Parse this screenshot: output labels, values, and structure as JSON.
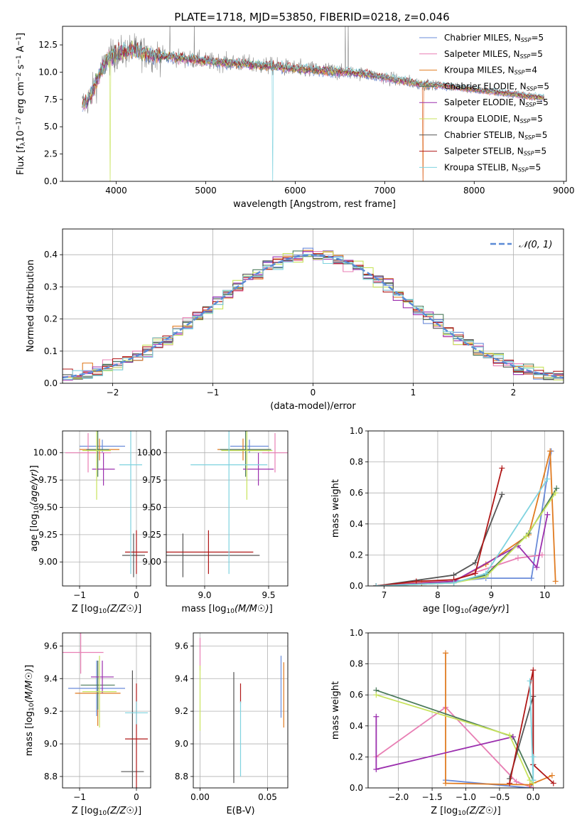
{
  "figure_title": "PLATE=1718, MJD=53850, FIBERID=0218, z=0.046",
  "colors": {
    "chabrier_miles": "#6a8bd9",
    "salpeter_miles": "#e87fb4",
    "kroupa_miles": "#e07b21",
    "chabrier_elodie": "#4b7a5b",
    "salpeter_elodie": "#9b2fae",
    "kroupa_elodie": "#c8e35c",
    "chabrier_stelib": "#555555",
    "salpeter_stelib": "#b01818",
    "kroupa_stelib": "#7fd3df",
    "data": "#888888",
    "gaussian": "#5b8ad6"
  },
  "legend": [
    {
      "base": "Chabrier MILES, N",
      "sub": "SSP",
      "tail": "=5",
      "color_key": "chabrier_miles"
    },
    {
      "base": "Salpeter MILES, N",
      "sub": "SSP",
      "tail": "=5",
      "color_key": "salpeter_miles"
    },
    {
      "base": "Kroupa MILES, N",
      "sub": "SSP",
      "tail": "=4",
      "color_key": "kroupa_miles"
    },
    {
      "base": "Chabrier ELODIE, N",
      "sub": "SSP",
      "tail": "=5",
      "color_key": "chabrier_elodie"
    },
    {
      "base": "Salpeter ELODIE, N",
      "sub": "SSP",
      "tail": "=5",
      "color_key": "salpeter_elodie"
    },
    {
      "base": "Kroupa ELODIE, N",
      "sub": "SSP",
      "tail": "=5",
      "color_key": "kroupa_elodie"
    },
    {
      "base": "Chabrier STELIB, N",
      "sub": "SSP",
      "tail": "=5",
      "color_key": "chabrier_stelib"
    },
    {
      "base": "Salpeter STELIB, N",
      "sub": "SSP",
      "tail": "=5",
      "color_key": "salpeter_stelib"
    },
    {
      "base": "Kroupa STELIB, N",
      "sub": "SSP",
      "tail": "=5",
      "color_key": "kroupa_stelib"
    }
  ],
  "chart_data": [
    {
      "id": "spectrum",
      "type": "line",
      "xlabel": "wavelength [Angstrom, rest frame]",
      "ylabel": "Flux [fλ10⁻¹⁷ erg cm⁻² s⁻¹ A⁻¹]",
      "xlim": [
        3400,
        9030
      ],
      "ylim": [
        0,
        14.2
      ],
      "xticks": [
        4000,
        5000,
        6000,
        7000,
        8000,
        9000
      ],
      "yticks": [
        0.0,
        2.5,
        5.0,
        7.5,
        10.0,
        12.5
      ],
      "continuum": {
        "x": [
          3620,
          3700,
          3800,
          3900,
          4000,
          4100,
          4200,
          4300,
          4400,
          4600,
          4800,
          5000,
          5200,
          5400,
          5600,
          5800,
          6000,
          6200,
          6400,
          6600,
          6800,
          7000,
          7200,
          7400,
          7600,
          7800,
          8000,
          8200,
          8400,
          8600,
          8800
        ],
        "y": [
          7.0,
          7.6,
          9.5,
          11.2,
          11.6,
          11.9,
          12.0,
          11.8,
          11.6,
          11.4,
          11.2,
          11.0,
          10.9,
          10.8,
          10.6,
          10.5,
          10.3,
          10.2,
          10.1,
          10.0,
          9.8,
          9.5,
          9.2,
          8.9,
          8.8,
          8.6,
          8.4,
          8.2,
          8.0,
          7.8,
          7.6
        ]
      },
      "legend_position": "upper right"
    },
    {
      "id": "residuals",
      "type": "histogram",
      "xlabel": "(data-model)/error",
      "ylabel": "Normed distribution",
      "xlim": [
        -2.5,
        2.5
      ],
      "ylim": [
        0,
        0.48
      ],
      "xticks": [
        -2,
        -1,
        0,
        1,
        2
      ],
      "yticks": [
        0.0,
        0.1,
        0.2,
        0.3,
        0.4
      ],
      "grid": true,
      "gaussian_label": "𝒩(0, 1)",
      "legend_position": "upper right"
    },
    {
      "id": "age_vs_Z",
      "type": "errorbar",
      "xlabel": "Z [log10(Z/Z☉)]",
      "ylabel": "age  [log10(age/yr)]",
      "xlim": [
        -1.3,
        0.25
      ],
      "ylim": [
        8.78,
        10.2
      ],
      "xticks": [
        -1,
        0
      ],
      "yticks": [
        9.0,
        9.25,
        9.5,
        9.75,
        10.0
      ],
      "grid": true,
      "points": [
        {
          "model": "chabrier_miles",
          "x": -0.6,
          "xerr": 0.4,
          "y": 10.06,
          "yerr": 0.06
        },
        {
          "model": "salpeter_miles",
          "x": -0.85,
          "xerr": 0.4,
          "y": 10.0,
          "yerr": 0.18
        },
        {
          "model": "kroupa_miles",
          "x": -0.65,
          "xerr": 0.35,
          "y": 10.03,
          "yerr": 0.1
        },
        {
          "model": "chabrier_elodie",
          "x": -0.68,
          "xerr": 0.2,
          "y": 10.03,
          "yerr": 0.25
        },
        {
          "model": "salpeter_elodie",
          "x": -0.58,
          "xerr": 0.2,
          "y": 9.85,
          "yerr": 0.15
        },
        {
          "model": "kroupa_elodie",
          "x": -0.7,
          "xerr": 0.25,
          "y": 10.02,
          "yerr": 0.45
        },
        {
          "model": "chabrier_stelib",
          "x": -0.05,
          "xerr": 0.2,
          "y": 9.06,
          "yerr": 0.2
        },
        {
          "model": "salpeter_stelib",
          "x": 0.0,
          "xerr": 0.2,
          "y": 9.09,
          "yerr": 0.2
        },
        {
          "model": "kroupa_stelib",
          "x": -0.1,
          "xerr": 0.2,
          "y": 9.89,
          "yerr": 1.0
        }
      ]
    },
    {
      "id": "age_vs_mass",
      "type": "errorbar",
      "xlabel": "mass [log10(M/M☉)]",
      "ylabel": "",
      "xlim": [
        8.7,
        9.65
      ],
      "ylim": [
        8.78,
        10.2
      ],
      "xticks": [
        9.0,
        9.5
      ],
      "yticks": [
        9.0,
        9.25,
        9.5,
        9.75,
        10.0
      ],
      "grid": true,
      "points": [
        {
          "model": "chabrier_miles",
          "x": 9.35,
          "xerr": 0.15,
          "y": 10.06,
          "yerr": 0.06
        },
        {
          "model": "salpeter_miles",
          "x": 9.55,
          "xerr": 0.1,
          "y": 10.0,
          "yerr": 0.18
        },
        {
          "model": "kroupa_miles",
          "x": 9.3,
          "xerr": 0.2,
          "y": 10.03,
          "yerr": 0.1
        },
        {
          "model": "chabrier_elodie",
          "x": 9.32,
          "xerr": 0.2,
          "y": 10.03,
          "yerr": 0.25
        },
        {
          "model": "salpeter_elodie",
          "x": 9.42,
          "xerr": 0.12,
          "y": 9.85,
          "yerr": 0.15
        },
        {
          "model": "kroupa_elodie",
          "x": 9.33,
          "xerr": 0.2,
          "y": 10.02,
          "yerr": 0.45
        },
        {
          "model": "chabrier_stelib",
          "x": 8.83,
          "xerr": 0.6,
          "y": 9.06,
          "yerr": 0.2
        },
        {
          "model": "salpeter_stelib",
          "x": 9.03,
          "xerr": 0.35,
          "y": 9.09,
          "yerr": 0.2
        },
        {
          "model": "kroupa_stelib",
          "x": 9.19,
          "xerr": 0.3,
          "y": 9.89,
          "yerr": 1.0
        }
      ]
    },
    {
      "id": "weight_vs_age",
      "type": "line",
      "xlabel": "age  [log10(age/yr)]",
      "ylabel": "mass weight",
      "xlim": [
        6.7,
        10.35
      ],
      "ylim": [
        0,
        1.0
      ],
      "xticks": [
        7,
        8,
        9,
        10
      ],
      "yticks": [
        0.0,
        0.2,
        0.4,
        0.6,
        0.8,
        1.0
      ],
      "grid": true,
      "series": [
        {
          "model": "chabrier_miles",
          "x": [
            6.85,
            8.3,
            8.9,
            9.75,
            10.12
          ],
          "y": [
            0.0,
            0.03,
            0.05,
            0.05,
            0.87
          ]
        },
        {
          "model": "salpeter_miles",
          "x": [
            6.85,
            8.3,
            9.5,
            9.95
          ],
          "y": [
            0.0,
            0.04,
            0.18,
            0.2
          ]
        },
        {
          "model": "kroupa_miles",
          "x": [
            6.85,
            7.7,
            8.3,
            8.9,
            9.7,
            10.1,
            10.2
          ],
          "y": [
            0.0,
            0.02,
            0.03,
            0.14,
            0.33,
            0.87,
            0.03
          ]
        },
        {
          "model": "chabrier_elodie",
          "x": [
            6.85,
            8.3,
            8.9,
            9.7,
            10.22
          ],
          "y": [
            0.0,
            0.02,
            0.07,
            0.34,
            0.63
          ]
        },
        {
          "model": "salpeter_elodie",
          "x": [
            6.85,
            8.3,
            9.5,
            9.85,
            10.05
          ],
          "y": [
            0.0,
            0.03,
            0.26,
            0.12,
            0.46
          ]
        },
        {
          "model": "kroupa_elodie",
          "x": [
            6.85,
            8.3,
            8.9,
            9.65,
            10.2
          ],
          "y": [
            0.0,
            0.02,
            0.06,
            0.32,
            0.6
          ]
        },
        {
          "model": "chabrier_stelib",
          "x": [
            6.85,
            8.3,
            8.7,
            9.2
          ],
          "y": [
            0.0,
            0.07,
            0.15,
            0.59
          ]
        },
        {
          "model": "salpeter_stelib",
          "x": [
            6.85,
            7.6,
            8.3,
            8.7,
            9.2
          ],
          "y": [
            0.0,
            0.03,
            0.04,
            0.08,
            0.76
          ]
        },
        {
          "model": "kroupa_stelib",
          "x": [
            6.85,
            8.3,
            8.9,
            10.05
          ],
          "y": [
            0.0,
            0.02,
            0.08,
            0.69
          ]
        }
      ]
    },
    {
      "id": "mass_vs_Z",
      "type": "errorbar",
      "xlabel": "Z [log10(Z/Z☉)]",
      "ylabel": "mass [log10(M/M☉)]",
      "xlim": [
        -1.3,
        0.25
      ],
      "ylim": [
        8.73,
        9.68
      ],
      "xticks": [
        -1,
        0
      ],
      "yticks": [
        8.8,
        9.0,
        9.2,
        9.4,
        9.6
      ],
      "grid": true,
      "points": [
        {
          "model": "chabrier_miles",
          "x": -0.7,
          "xerr": 0.5,
          "y": 9.34,
          "yerr": 0.17
        },
        {
          "model": "salpeter_miles",
          "x": -0.98,
          "xerr": 0.4,
          "y": 9.56,
          "yerr": 0.13
        },
        {
          "model": "kroupa_miles",
          "x": -0.68,
          "xerr": 0.4,
          "y": 9.31,
          "yerr": 0.2
        },
        {
          "model": "chabrier_elodie",
          "x": -0.68,
          "xerr": 0.3,
          "y": 9.36,
          "yerr": 0.15
        },
        {
          "model": "salpeter_elodie",
          "x": -0.6,
          "xerr": 0.2,
          "y": 9.41,
          "yerr": 0.1
        },
        {
          "model": "kroupa_elodie",
          "x": -0.65,
          "xerr": 0.3,
          "y": 9.32,
          "yerr": 0.22
        },
        {
          "model": "chabrier_stelib",
          "x": -0.07,
          "xerr": 0.2,
          "y": 8.83,
          "yerr": 0.62
        },
        {
          "model": "salpeter_stelib",
          "x": 0.0,
          "xerr": 0.2,
          "y": 9.03,
          "yerr": 0.34
        },
        {
          "model": "kroupa_stelib",
          "x": 0.0,
          "xerr": 0.2,
          "y": 9.19,
          "yerr": 0.07
        }
      ]
    },
    {
      "id": "mass_vs_ebv",
      "type": "errorbar",
      "xlabel": "E(B-V)",
      "ylabel": "",
      "xlim": [
        -0.005,
        0.065
      ],
      "ylim": [
        8.73,
        9.68
      ],
      "xticks": [
        0.0,
        0.05
      ],
      "yticks": [
        8.8,
        9.0,
        9.2,
        9.4,
        9.6
      ],
      "grid": true,
      "points": [
        {
          "model": "salpeter_miles",
          "x": 0.0,
          "y": 9.55,
          "yerr": 0.1
        },
        {
          "model": "kroupa_elodie",
          "x": 0.0,
          "y": 9.28,
          "yerr": 0.2
        },
        {
          "model": "chabrier_stelib",
          "x": 0.025,
          "y": 9.1,
          "yerr": 0.34
        },
        {
          "model": "salpeter_stelib",
          "x": 0.03,
          "y": 9.31,
          "yerr": 0.06
        },
        {
          "model": "kroupa_stelib",
          "x": 0.03,
          "y": 9.03,
          "yerr": 0.23
        },
        {
          "model": "chabrier_miles",
          "x": 0.06,
          "y": 9.35,
          "yerr": 0.19
        },
        {
          "model": "kroupa_miles",
          "x": 0.062,
          "y": 9.3,
          "yerr": 0.2
        }
      ]
    },
    {
      "id": "weight_vs_Z",
      "type": "line",
      "xlabel": "Z [log10(Z/Z☉)]",
      "ylabel": "mass weight",
      "xlim": [
        -2.45,
        0.45
      ],
      "ylim": [
        0,
        1.0
      ],
      "xticks": [
        -2.0,
        -1.5,
        -1.0,
        -0.5,
        0.0
      ],
      "yticks": [
        0.0,
        0.2,
        0.4,
        0.6,
        0.8,
        1.0
      ],
      "grid": true,
      "series": [
        {
          "model": "chabrier_miles",
          "x": [
            -1.3,
            -0.05,
            0.0
          ],
          "y": [
            0.05,
            0.0,
            0.03
          ]
        },
        {
          "model": "salpeter_miles",
          "x": [
            -2.33,
            -1.3,
            -0.25,
            0.0
          ],
          "y": [
            0.2,
            0.52,
            0.04,
            0.0
          ]
        },
        {
          "model": "kroupa_miles",
          "x": [
            -1.3,
            -1.3,
            -0.05,
            0.28
          ],
          "y": [
            0.87,
            0.03,
            0.02,
            0.08
          ]
        },
        {
          "model": "chabrier_elodie",
          "x": [
            -2.33,
            -0.3,
            0.0
          ],
          "y": [
            0.63,
            0.33,
            0.05
          ]
        },
        {
          "model": "salpeter_elodie",
          "x": [
            -2.33,
            -2.33,
            -0.3
          ],
          "y": [
            0.46,
            0.12,
            0.33
          ]
        },
        {
          "model": "kroupa_elodie",
          "x": [
            -2.33,
            -0.35,
            -0.05,
            0.0
          ],
          "y": [
            0.6,
            0.34,
            0.05,
            0.03
          ]
        },
        {
          "model": "chabrier_stelib",
          "x": [
            -0.35,
            0.0,
            0.0
          ],
          "y": [
            0.06,
            0.59,
            0.15
          ]
        },
        {
          "model": "salpeter_stelib",
          "x": [
            -0.35,
            0.0,
            0.0,
            0.3
          ],
          "y": [
            0.03,
            0.76,
            0.15,
            0.03
          ]
        },
        {
          "model": "kroupa_stelib",
          "x": [
            -0.05,
            0.0,
            0.0
          ],
          "y": [
            0.69,
            0.05,
            0.2
          ]
        }
      ]
    }
  ]
}
